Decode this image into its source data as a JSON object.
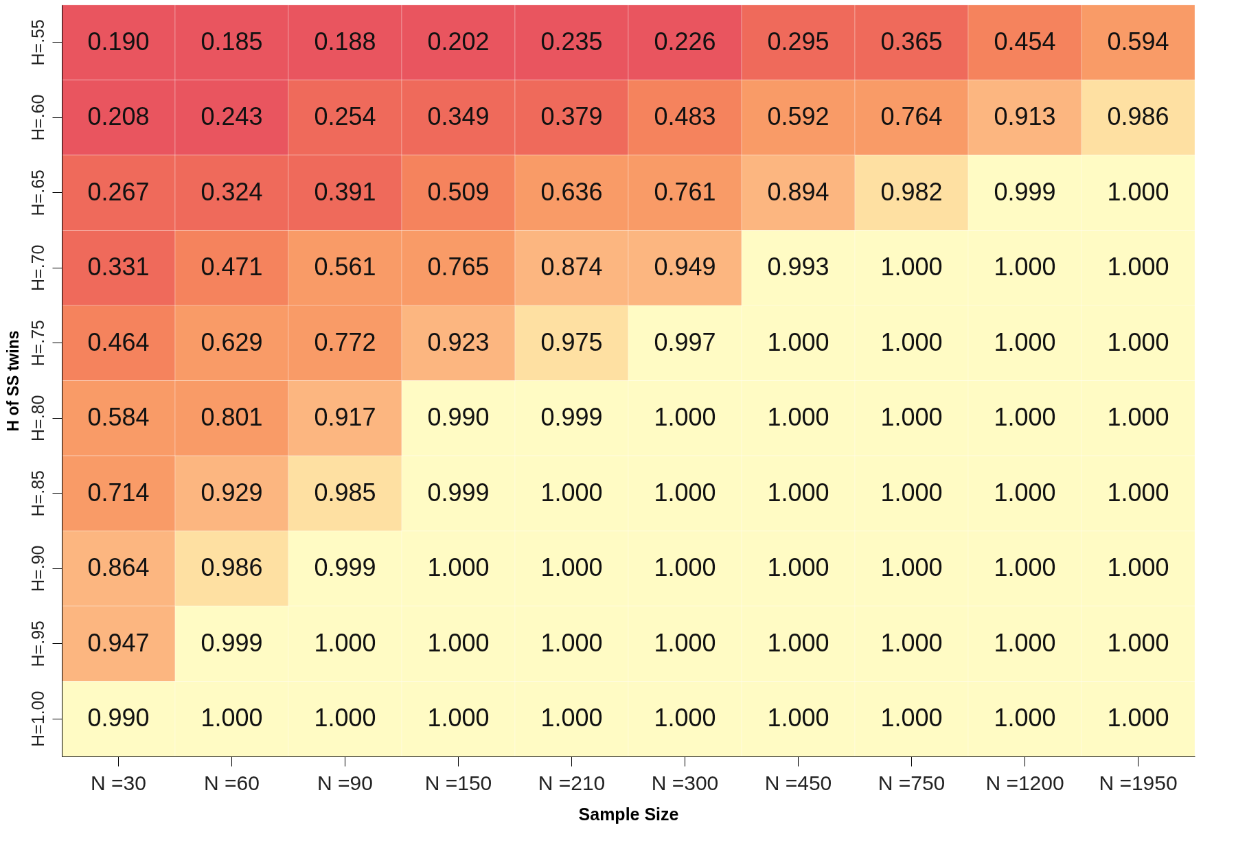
{
  "chart_data": {
    "type": "heatmap",
    "xlabel": "Sample Size",
    "ylabel": "H of SS twins",
    "categories": [
      "N =30",
      "N =60",
      "N =90",
      "N =150",
      "N =210",
      "N =300",
      "N =450",
      "N =750",
      "N =1200",
      "N =1950"
    ],
    "y_categories": [
      "H=.55",
      "H=.60",
      "H=.65",
      "H=.70",
      "H=.75",
      "H=.80",
      "H=.85",
      "H=.90",
      "H=.95",
      "H=1.00"
    ],
    "cells": [
      [
        0.19,
        0.185,
        0.188,
        0.202,
        0.235,
        0.226,
        0.295,
        0.365,
        0.454,
        0.594
      ],
      [
        0.208,
        0.243,
        0.254,
        0.349,
        0.379,
        0.483,
        0.592,
        0.764,
        0.913,
        0.986
      ],
      [
        0.267,
        0.324,
        0.391,
        0.509,
        0.636,
        0.761,
        0.894,
        0.982,
        0.999,
        1.0
      ],
      [
        0.331,
        0.471,
        0.561,
        0.765,
        0.874,
        0.949,
        0.993,
        1.0,
        1.0,
        1.0
      ],
      [
        0.464,
        0.629,
        0.772,
        0.923,
        0.975,
        0.997,
        1.0,
        1.0,
        1.0,
        1.0
      ],
      [
        0.584,
        0.801,
        0.917,
        0.99,
        0.999,
        1.0,
        1.0,
        1.0,
        1.0,
        1.0
      ],
      [
        0.714,
        0.929,
        0.985,
        0.999,
        1.0,
        1.0,
        1.0,
        1.0,
        1.0,
        1.0
      ],
      [
        0.864,
        0.986,
        0.999,
        1.0,
        1.0,
        1.0,
        1.0,
        1.0,
        1.0,
        1.0
      ],
      [
        0.947,
        0.999,
        1.0,
        1.0,
        1.0,
        1.0,
        1.0,
        1.0,
        1.0,
        1.0
      ],
      [
        0.99,
        1.0,
        1.0,
        1.0,
        1.0,
        1.0,
        1.0,
        1.0,
        1.0,
        1.0
      ]
    ],
    "cell_labels": [
      [
        "0.190",
        "0.185",
        "0.188",
        "0.202",
        "0.235",
        "0.226",
        "0.295",
        "0.365",
        "0.454",
        "0.594"
      ],
      [
        "0.208",
        "0.243",
        "0.254",
        "0.349",
        "0.379",
        "0.483",
        "0.592",
        "0.764",
        "0.913",
        "0.986"
      ],
      [
        "0.267",
        "0.324",
        "0.391",
        "0.509",
        "0.636",
        "0.761",
        "0.894",
        "0.982",
        "0.999",
        "1.000"
      ],
      [
        "0.331",
        "0.471",
        "0.561",
        "0.765",
        "0.874",
        "0.949",
        "0.993",
        "1.000",
        "1.000",
        "1.000"
      ],
      [
        "0.464",
        "0.629",
        "0.772",
        "0.923",
        "0.975",
        "0.997",
        "1.000",
        "1.000",
        "1.000",
        "1.000"
      ],
      [
        "0.584",
        "0.801",
        "0.917",
        "0.990",
        "0.999",
        "1.000",
        "1.000",
        "1.000",
        "1.000",
        "1.000"
      ],
      [
        "0.714",
        "0.929",
        "0.985",
        "0.999",
        "1.000",
        "1.000",
        "1.000",
        "1.000",
        "1.000",
        "1.000"
      ],
      [
        "0.864",
        "0.986",
        "0.999",
        "1.000",
        "1.000",
        "1.000",
        "1.000",
        "1.000",
        "1.000",
        "1.000"
      ],
      [
        "0.947",
        "0.999",
        "1.000",
        "1.000",
        "1.000",
        "1.000",
        "1.000",
        "1.000",
        "1.000",
        "1.000"
      ],
      [
        "0.990",
        "1.000",
        "1.000",
        "1.000",
        "1.000",
        "1.000",
        "1.000",
        "1.000",
        "1.000",
        "1.000"
      ]
    ]
  }
}
